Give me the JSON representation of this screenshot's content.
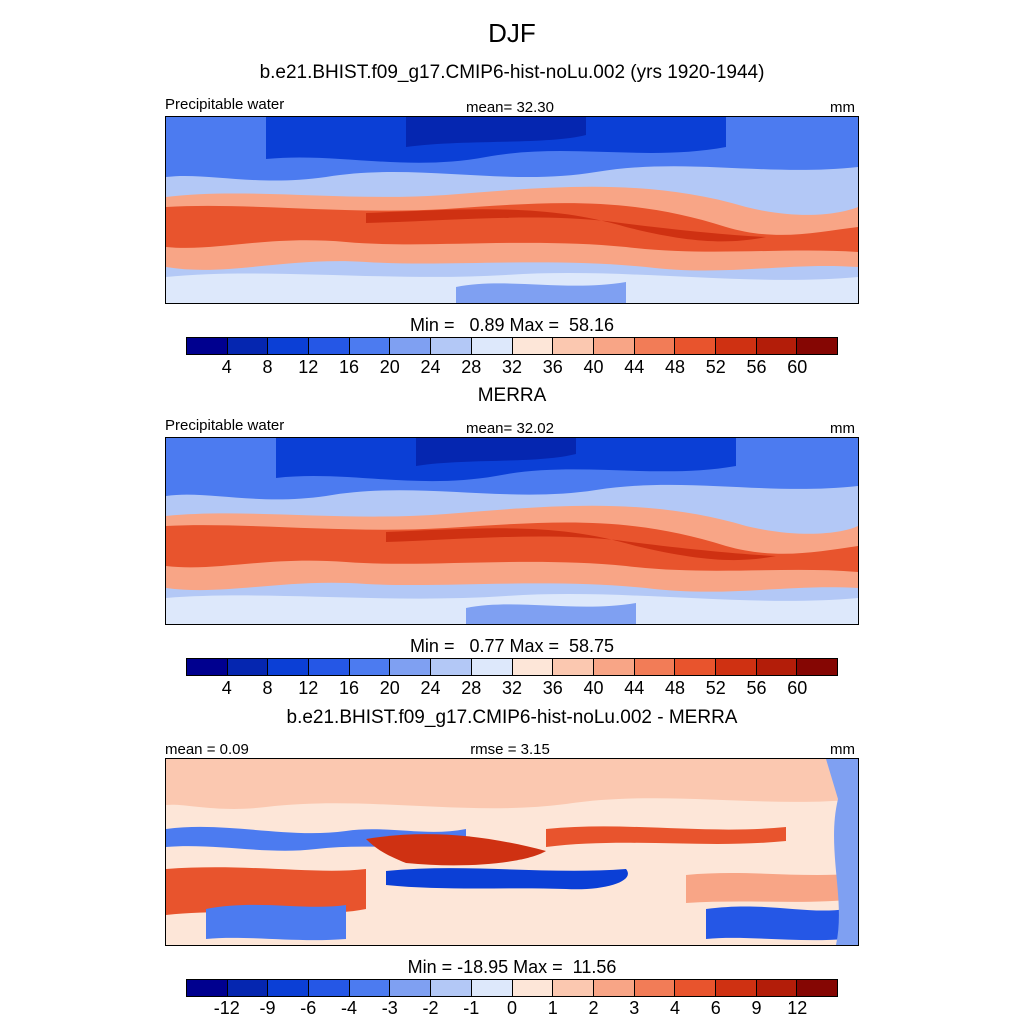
{
  "title": "DJF",
  "panels": [
    {
      "heading": "b.e21.BHIST.f09_g17.CMIP6-hist-noLu.002 (yrs 1920-1944)",
      "left_label": "Precipitable water",
      "center_label": "mean=  32.30",
      "right_label": "mm",
      "minmax": "Min =   0.89 Max =  58.16",
      "colorbar_ticks": [
        "4",
        "8",
        "12",
        "16",
        "20",
        "24",
        "28",
        "32",
        "36",
        "40",
        "44",
        "48",
        "52",
        "56",
        "60"
      ]
    },
    {
      "heading": "MERRA",
      "left_label": "Precipitable water",
      "center_label": "mean=  32.02",
      "right_label": "mm",
      "minmax": "Min =   0.77 Max =  58.75",
      "colorbar_ticks": [
        "4",
        "8",
        "12",
        "16",
        "20",
        "24",
        "28",
        "32",
        "36",
        "40",
        "44",
        "48",
        "52",
        "56",
        "60"
      ]
    },
    {
      "heading": "b.e21.BHIST.f09_g17.CMIP6-hist-noLu.002 - MERRA",
      "left_label": "mean =   0.09",
      "center_label": "rmse =   3.15",
      "right_label": "mm",
      "minmax": "Min = -18.95 Max =  11.56",
      "colorbar_ticks": [
        "-12",
        "-9",
        "-6",
        "-4",
        "-3",
        "-2",
        "-1",
        "0",
        "1",
        "2",
        "3",
        "4",
        "6",
        "9",
        "12"
      ]
    }
  ],
  "colorbar_colors": [
    "#00008f",
    "#0526b0",
    "#0b3fd6",
    "#2557e6",
    "#4c7bf0",
    "#7fa0f2",
    "#b3c8f6",
    "#dde8fb",
    "#fde6d8",
    "#fbc8b0",
    "#f8a586",
    "#f27c57",
    "#e8542d",
    "#cf3112",
    "#b31d09",
    "#850603"
  ],
  "map_background": {
    "mean_field": "#fbd3bf",
    "moist_band": "#e8542d",
    "dry_region": "#2557e6",
    "diff_neutral": "#fde6d8",
    "diff_positive": "#e8542d",
    "diff_negative": "#2e63e0"
  }
}
